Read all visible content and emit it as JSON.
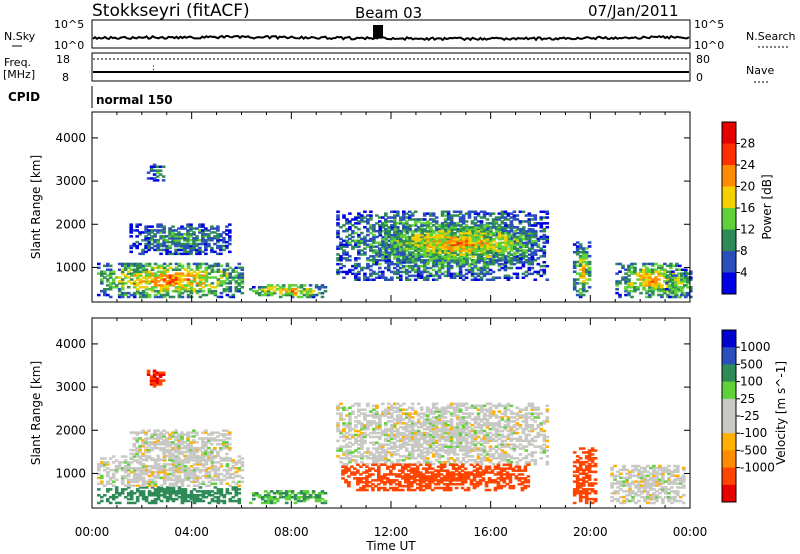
{
  "header": {
    "title": "Stokkseyri (fitACF)",
    "beam": "Beam 03",
    "date": "07/Jan/2011"
  },
  "top_panels": {
    "nsky_label": "N.Sky",
    "nsearch_label": "N.Search",
    "nsky_ticks": [
      "10^5",
      "10^0"
    ],
    "nsearch_ticks": [
      "10^5",
      "10^0"
    ],
    "freq_label": "Freq.",
    "freq_unit": "[MHz]",
    "freq_ticks": [
      "18",
      "8"
    ],
    "nave_label": "Nave",
    "nave_ticks": [
      "80",
      "0"
    ],
    "cpid_label": "CPID",
    "cpid_value": "normal 150"
  },
  "colors": {
    "power": [
      "#0000e6",
      "#2a4fbd",
      "#2e8b57",
      "#5fd13a",
      "#f5d000",
      "#ff8c00",
      "#ff3000",
      "#e60000"
    ],
    "velocity": [
      "#e60000",
      "#ff4500",
      "#ff8c00",
      "#ffb000",
      "#c8c8c4",
      "#c8c8c4",
      "#5fd13a",
      "#2e8b57",
      "#2a4fbd",
      "#0000d0"
    ]
  },
  "chart_data": [
    {
      "type": "heatmap",
      "quantity": "Power",
      "xlabel": "Time UT",
      "ylabel": "Slant Range [km]",
      "xlim": [
        "00:00",
        "24:00"
      ],
      "ylim": [
        200,
        4600
      ],
      "y_ticks": [
        "1000",
        "2000",
        "3000",
        "4000"
      ],
      "x_ticks": [
        "00:00",
        "04:00",
        "08:00",
        "12:00",
        "16:00",
        "20:00",
        "00:00"
      ],
      "colorbar": {
        "label": "Power [dB]",
        "ticks": [
          "4",
          "8",
          "12",
          "16",
          "20",
          "24",
          "28"
        ],
        "range": [
          0,
          32
        ]
      },
      "regions": [
        {
          "t": [
            0.2,
            6.0
          ],
          "r": [
            300,
            1100
          ],
          "value": 24
        },
        {
          "t": [
            1.5,
            5.5
          ],
          "r": [
            1300,
            2000
          ],
          "value": 12
        },
        {
          "t": [
            2.2,
            2.9
          ],
          "r": [
            3000,
            3400
          ],
          "value": 10
        },
        {
          "t": [
            6.3,
            9.4
          ],
          "r": [
            300,
            600
          ],
          "value": 22
        },
        {
          "t": [
            9.8,
            18.3
          ],
          "r": [
            700,
            2300
          ],
          "value": 16
        },
        {
          "t": [
            11.5,
            17.8
          ],
          "r": [
            1100,
            2000
          ],
          "value": 22
        },
        {
          "t": [
            19.3,
            20.0
          ],
          "r": [
            300,
            1600
          ],
          "value": 20
        },
        {
          "t": [
            21.0,
            23.8
          ],
          "r": [
            300,
            1100
          ],
          "value": 22
        },
        {
          "t": [
            23.0,
            24.0
          ],
          "r": [
            300,
            900
          ],
          "value": 20
        }
      ]
    },
    {
      "type": "heatmap",
      "quantity": "Velocity",
      "xlabel": "Time UT",
      "ylabel": "Slant Range [km]",
      "xlim": [
        "00:00",
        "24:00"
      ],
      "ylim": [
        200,
        4600
      ],
      "y_ticks": [
        "1000",
        "2000",
        "3000",
        "4000"
      ],
      "x_ticks": [
        "00:00",
        "04:00",
        "08:00",
        "12:00",
        "16:00",
        "20:00",
        "00:00"
      ],
      "colorbar": {
        "label": "Velocity [m s^-1]",
        "ticks": [
          "1000",
          "500",
          "100",
          "25",
          "-25",
          "-100",
          "-500",
          "-1000"
        ]
      },
      "regions": [
        {
          "t": [
            0.2,
            6.0
          ],
          "r": [
            300,
            700
          ],
          "value": 150
        },
        {
          "t": [
            0.2,
            6.0
          ],
          "r": [
            700,
            1400
          ],
          "value": 0
        },
        {
          "t": [
            1.5,
            5.5
          ],
          "r": [
            1300,
            2000
          ],
          "value": 0
        },
        {
          "t": [
            2.2,
            2.9
          ],
          "r": [
            3000,
            3400
          ],
          "value": -500
        },
        {
          "t": [
            6.3,
            9.4
          ],
          "r": [
            300,
            600
          ],
          "value": 100
        },
        {
          "t": [
            9.8,
            18.3
          ],
          "r": [
            1200,
            2600
          ],
          "value": 0
        },
        {
          "t": [
            10.0,
            17.5
          ],
          "r": [
            600,
            1200
          ],
          "value": -300
        },
        {
          "t": [
            19.3,
            20.2
          ],
          "r": [
            300,
            1600
          ],
          "value": -300
        },
        {
          "t": [
            20.8,
            23.8
          ],
          "r": [
            300,
            1200
          ],
          "value": 0
        }
      ]
    }
  ]
}
